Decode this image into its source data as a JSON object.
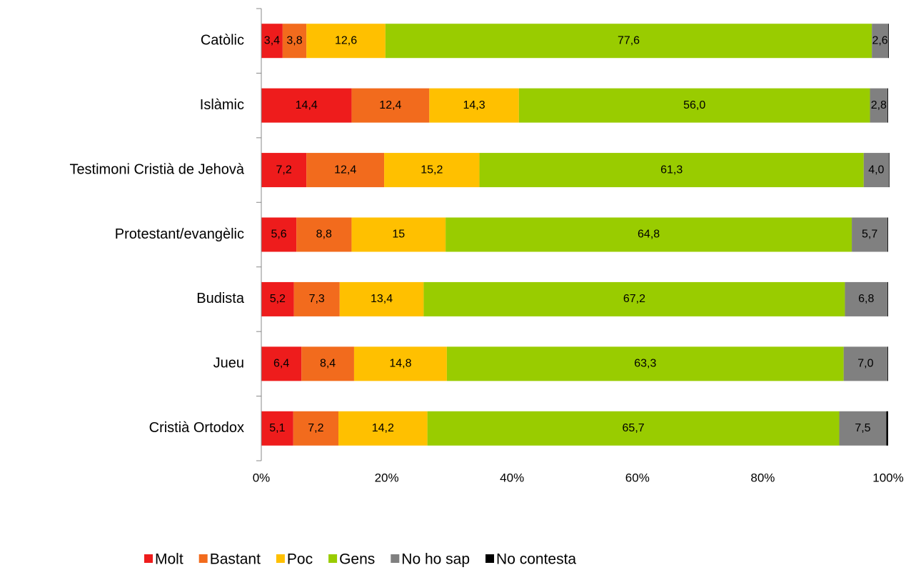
{
  "chart_data": {
    "type": "stacked-bar-horizontal",
    "categories": [
      "Catòlic",
      "Islàmic",
      "Testimoni Cristià de Jehovà",
      "Protestant/evangèlic",
      "Budista",
      "Jueu",
      "Cristià Ortodox"
    ],
    "series": [
      {
        "name": "Molt",
        "color": "#ee1c1c",
        "values": [
          3.4,
          14.4,
          7.2,
          5.6,
          5.2,
          6.4,
          5.1
        ],
        "value_labels": [
          "3,4",
          "14,4",
          "7,2",
          "5,6",
          "5,2",
          "6,4",
          "5,1"
        ]
      },
      {
        "name": "Bastant",
        "color": "#f26b1d",
        "values": [
          3.8,
          12.4,
          12.4,
          8.8,
          7.3,
          8.4,
          7.2
        ],
        "value_labels": [
          "3,8",
          "12,4",
          "12,4",
          "8,8",
          "7,3",
          "8,4",
          "7,2"
        ]
      },
      {
        "name": "Poc",
        "color": "#ffc000",
        "values": [
          12.6,
          14.3,
          15.2,
          15,
          13.4,
          14.8,
          14.2
        ],
        "value_labels": [
          "12,6",
          "14,3",
          "15,2",
          "15",
          "13,4",
          "14,8",
          "14,2"
        ]
      },
      {
        "name": "Gens",
        "color": "#99cc00",
        "values": [
          77.6,
          56.0,
          61.3,
          64.8,
          67.2,
          63.3,
          65.7
        ],
        "value_labels": [
          "77,6",
          "56,0",
          "61,3",
          "64,8",
          "67,2",
          "63,3",
          "65,7"
        ]
      },
      {
        "name": "No ho sap",
        "color": "#808080",
        "values": [
          2.6,
          2.8,
          4.0,
          5.7,
          6.8,
          7.0,
          7.5
        ],
        "value_labels": [
          "2,6",
          "2,8",
          "4,0",
          "5,7",
          "6,8",
          "7,0",
          "7,5"
        ]
      },
      {
        "name": "No contesta",
        "color": "#000000",
        "values": [
          0.1,
          0.1,
          0.1,
          0.1,
          0.1,
          0.1,
          0.3
        ]
      }
    ],
    "xlim": [
      0,
      100
    ],
    "xticks": [
      {
        "value": 0,
        "label": "0%"
      },
      {
        "value": 20,
        "label": "20%"
      },
      {
        "value": 40,
        "label": "40%"
      },
      {
        "value": 60,
        "label": "60%"
      },
      {
        "value": 80,
        "label": "80%"
      },
      {
        "value": 100,
        "label": "100%"
      }
    ],
    "legend": "bottom"
  }
}
